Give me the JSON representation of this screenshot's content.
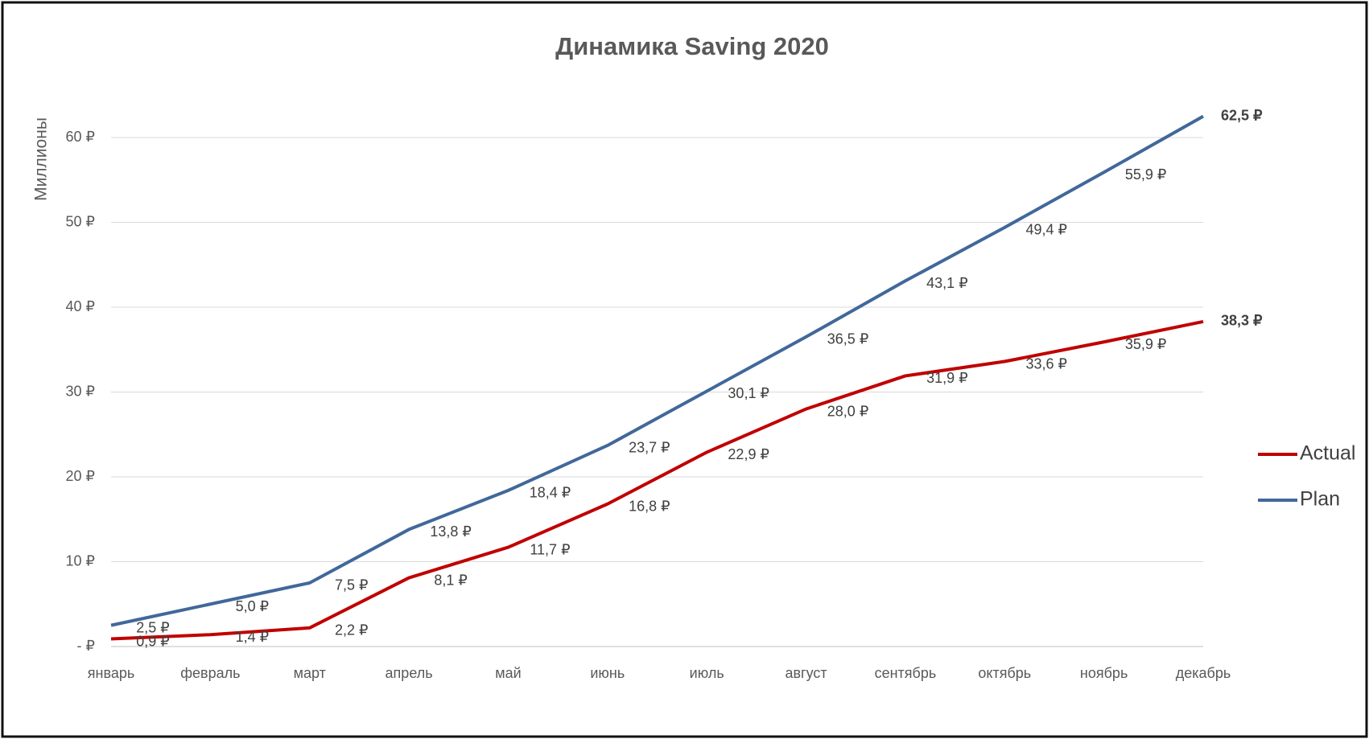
{
  "chart_data": {
    "type": "line",
    "title": "Динамика Saving 2020",
    "y_label": "Миллионы",
    "categories": [
      "январь",
      "февраль",
      "март",
      "апрель",
      "май",
      "июнь",
      "июль",
      "август",
      "сентябрь",
      "октябрь",
      "ноябрь",
      "декабрь"
    ],
    "series": [
      {
        "name": "Actual",
        "color": "#c00000",
        "values": [
          0.9,
          1.4,
          2.2,
          8.1,
          11.7,
          16.8,
          22.9,
          28.0,
          31.9,
          33.6,
          35.9,
          38.3
        ],
        "value_labels": [
          "0,9 ₽",
          "1,4 ₽",
          "2,2 ₽",
          "8,1 ₽",
          "11,7 ₽",
          "16,8 ₽",
          "22,9 ₽",
          "28,0 ₽",
          "31,9 ₽",
          "33,6 ₽",
          "35,9 ₽",
          "38,3 ₽"
        ]
      },
      {
        "name": "Plan",
        "color": "#41689a",
        "values": [
          2.5,
          5.0,
          7.5,
          13.8,
          18.4,
          23.7,
          30.1,
          36.5,
          43.1,
          49.4,
          55.9,
          62.5
        ],
        "value_labels": [
          "2,5 ₽",
          "5,0 ₽",
          "7,5 ₽",
          "13,8 ₽",
          "18,4 ₽",
          "23,7 ₽",
          "30,1 ₽",
          "36,5 ₽",
          "43,1 ₽",
          "49,4 ₽",
          "55,9 ₽",
          "62,5 ₽"
        ]
      }
    ],
    "ylim": [
      0,
      65
    ],
    "yticks": [
      {
        "value": 0,
        "label": "- ₽"
      },
      {
        "value": 10,
        "label": "10 ₽"
      },
      {
        "value": 20,
        "label": "20 ₽"
      },
      {
        "value": 30,
        "label": "30 ₽"
      },
      {
        "value": 40,
        "label": "40 ₽"
      },
      {
        "value": 50,
        "label": "50 ₽"
      },
      {
        "value": 60,
        "label": "60 ₽"
      }
    ],
    "grid": true,
    "legend": "right"
  }
}
